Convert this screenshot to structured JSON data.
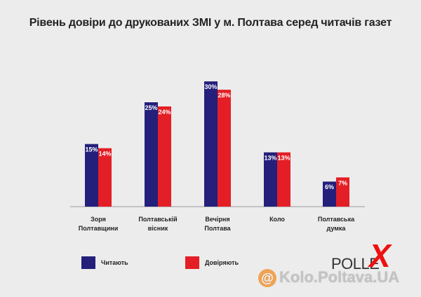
{
  "chart_data": {
    "type": "bar",
    "title": "Рівень довіри до друкованих ЗМІ у м. Полтава серед читачів газет",
    "categories": [
      [
        "Зоря",
        "Полтавщини"
      ],
      [
        "Полтавській",
        "вісник"
      ],
      [
        "Вечірня",
        "Полтава"
      ],
      [
        "Коло"
      ],
      [
        "Полтавська",
        "думка"
      ]
    ],
    "series": [
      {
        "name": "Читають",
        "values": [
          15,
          25,
          30,
          13,
          6
        ],
        "labels": [
          "15%",
          "25%",
          "30%",
          "13%",
          "6%"
        ],
        "color": "#231f7a"
      },
      {
        "name": "Довіряють",
        "values": [
          14,
          24,
          28,
          13,
          7
        ],
        "labels": [
          "14%",
          "24%",
          "28%",
          "13%",
          "7%"
        ],
        "color": "#e41e26"
      }
    ],
    "ylim": [
      0,
      35
    ],
    "grid": false,
    "legend_position": "bottom-left"
  },
  "brand": {
    "pollex_text": "POLLE",
    "pollex_x": "X"
  },
  "watermark": {
    "text": "Kolo.Poltava.UA",
    "at": "@"
  }
}
